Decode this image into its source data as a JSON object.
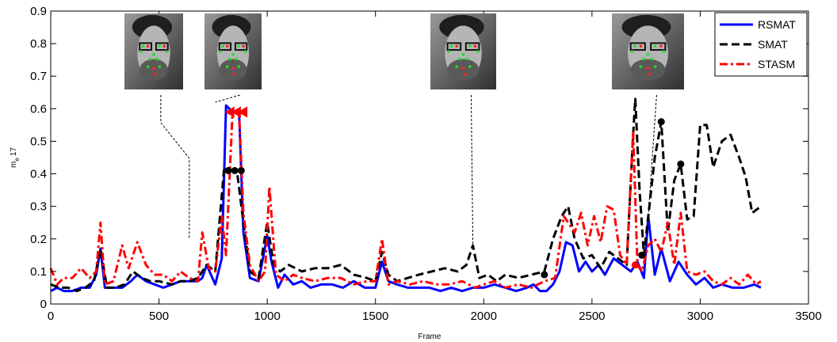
{
  "chart_data": {
    "type": "line",
    "title": "",
    "xlabel": "Frame",
    "ylabel": "m_e 17",
    "ylabel_main": "m",
    "ylabel_sub": "e",
    "ylabel_suffix": "17",
    "xlim": [
      0,
      3500
    ],
    "ylim": [
      0,
      0.9
    ],
    "x_ticks": [
      0,
      500,
      1000,
      1500,
      2000,
      2500,
      3000,
      3500
    ],
    "y_ticks": [
      0,
      0.1,
      0.2,
      0.3,
      0.4,
      0.5,
      0.6,
      0.7,
      0.8,
      0.9
    ],
    "x_tick_labels": [
      "0",
      "500",
      "1000",
      "1500",
      "2000",
      "2500",
      "3000",
      "3500"
    ],
    "y_tick_labels": [
      "0",
      "0.1",
      "0.2",
      "0.3",
      "0.4",
      "0.5",
      "0.6",
      "0.7",
      "0.8",
      "0.9"
    ],
    "grid": false,
    "legend_position": "top-right",
    "series": [
      {
        "name": "RSMAT",
        "color": "#0000ff",
        "style": "solid",
        "x": [
          0,
          30,
          60,
          100,
          140,
          180,
          210,
          230,
          250,
          290,
          330,
          370,
          400,
          440,
          480,
          520,
          560,
          600,
          640,
          680,
          700,
          720,
          760,
          790,
          810,
          840,
          870,
          890,
          920,
          960,
          1000,
          1020,
          1050,
          1080,
          1120,
          1160,
          1200,
          1250,
          1300,
          1350,
          1400,
          1450,
          1500,
          1530,
          1560,
          1600,
          1650,
          1700,
          1750,
          1800,
          1850,
          1900,
          1950,
          2000,
          2050,
          2100,
          2150,
          2200,
          2230,
          2260,
          2290,
          2320,
          2350,
          2380,
          2410,
          2440,
          2470,
          2500,
          2530,
          2560,
          2600,
          2640,
          2680,
          2710,
          2740,
          2760,
          2790,
          2820,
          2860,
          2900,
          2940,
          2980,
          3020,
          3060,
          3100,
          3150,
          3200,
          3250,
          3280
        ],
        "y": [
          0.04,
          0.05,
          0.04,
          0.04,
          0.05,
          0.05,
          0.09,
          0.17,
          0.05,
          0.05,
          0.05,
          0.07,
          0.09,
          0.07,
          0.06,
          0.05,
          0.06,
          0.07,
          0.07,
          0.07,
          0.08,
          0.12,
          0.06,
          0.14,
          0.61,
          0.59,
          0.59,
          0.22,
          0.08,
          0.07,
          0.21,
          0.13,
          0.05,
          0.09,
          0.06,
          0.07,
          0.05,
          0.06,
          0.06,
          0.05,
          0.07,
          0.05,
          0.05,
          0.13,
          0.07,
          0.06,
          0.05,
          0.05,
          0.05,
          0.04,
          0.05,
          0.04,
          0.05,
          0.05,
          0.06,
          0.05,
          0.04,
          0.05,
          0.06,
          0.04,
          0.04,
          0.06,
          0.1,
          0.19,
          0.18,
          0.1,
          0.13,
          0.1,
          0.12,
          0.09,
          0.14,
          0.12,
          0.1,
          0.13,
          0.08,
          0.27,
          0.09,
          0.17,
          0.07,
          0.13,
          0.09,
          0.06,
          0.08,
          0.05,
          0.06,
          0.05,
          0.05,
          0.06,
          0.05
        ]
      },
      {
        "name": "SMAT",
        "color": "#000000",
        "style": "dashed",
        "x": [
          0,
          40,
          80,
          120,
          160,
          200,
          230,
          260,
          300,
          340,
          380,
          420,
          460,
          500,
          560,
          600,
          640,
          680,
          720,
          760,
          800,
          830,
          860,
          890,
          920,
          960,
          1000,
          1030,
          1060,
          1100,
          1160,
          1220,
          1280,
          1340,
          1400,
          1460,
          1500,
          1530,
          1560,
          1600,
          1650,
          1700,
          1760,
          1820,
          1880,
          1920,
          1950,
          1980,
          2020,
          2060,
          2100,
          2160,
          2220,
          2280,
          2320,
          2360,
          2390,
          2420,
          2460,
          2500,
          2540,
          2580,
          2620,
          2660,
          2690,
          2700,
          2720,
          2740,
          2760,
          2790,
          2820,
          2850,
          2880,
          2910,
          2940,
          2970,
          3000,
          3030,
          3060,
          3100,
          3140,
          3180,
          3210,
          3240,
          3280
        ],
        "y": [
          0.06,
          0.05,
          0.05,
          0.04,
          0.05,
          0.07,
          0.17,
          0.05,
          0.05,
          0.06,
          0.1,
          0.08,
          0.07,
          0.07,
          0.06,
          0.07,
          0.07,
          0.08,
          0.12,
          0.1,
          0.41,
          0.41,
          0.41,
          0.25,
          0.1,
          0.08,
          0.25,
          0.12,
          0.1,
          0.12,
          0.1,
          0.11,
          0.11,
          0.12,
          0.09,
          0.08,
          0.07,
          0.16,
          0.09,
          0.07,
          0.08,
          0.09,
          0.1,
          0.11,
          0.1,
          0.12,
          0.18,
          0.08,
          0.09,
          0.07,
          0.09,
          0.08,
          0.09,
          0.1,
          0.2,
          0.27,
          0.3,
          0.2,
          0.14,
          0.15,
          0.11,
          0.16,
          0.14,
          0.12,
          0.52,
          0.63,
          0.35,
          0.15,
          0.27,
          0.45,
          0.56,
          0.22,
          0.38,
          0.43,
          0.26,
          0.27,
          0.55,
          0.55,
          0.42,
          0.5,
          0.52,
          0.45,
          0.39,
          0.28,
          0.3
        ]
      },
      {
        "name": "STASM",
        "color": "#ff0000",
        "style": "dashdot",
        "x": [
          0,
          30,
          60,
          100,
          140,
          180,
          210,
          230,
          250,
          290,
          330,
          360,
          400,
          440,
          480,
          520,
          560,
          600,
          640,
          680,
          700,
          730,
          760,
          790,
          810,
          840,
          870,
          890,
          920,
          960,
          990,
          1010,
          1040,
          1080,
          1120,
          1160,
          1220,
          1280,
          1340,
          1400,
          1460,
          1500,
          1530,
          1560,
          1600,
          1660,
          1720,
          1780,
          1840,
          1900,
          1960,
          2000,
          2050,
          2100,
          2160,
          2220,
          2280,
          2330,
          2370,
          2390,
          2420,
          2450,
          2480,
          2510,
          2540,
          2570,
          2600,
          2630,
          2660,
          2690,
          2710,
          2730,
          2760,
          2790,
          2820,
          2850,
          2880,
          2910,
          2940,
          2980,
          3020,
          3060,
          3100,
          3140,
          3180,
          3220,
          3260,
          3280
        ],
        "y": [
          0.11,
          0.06,
          0.08,
          0.08,
          0.11,
          0.08,
          0.1,
          0.25,
          0.06,
          0.07,
          0.18,
          0.11,
          0.19,
          0.12,
          0.09,
          0.09,
          0.07,
          0.1,
          0.08,
          0.07,
          0.22,
          0.11,
          0.1,
          0.27,
          0.15,
          0.59,
          0.59,
          0.28,
          0.12,
          0.07,
          0.1,
          0.36,
          0.09,
          0.07,
          0.09,
          0.08,
          0.07,
          0.08,
          0.08,
          0.06,
          0.07,
          0.07,
          0.2,
          0.06,
          0.07,
          0.06,
          0.07,
          0.06,
          0.06,
          0.07,
          0.05,
          0.06,
          0.07,
          0.05,
          0.06,
          0.05,
          0.07,
          0.08,
          0.27,
          0.25,
          0.22,
          0.28,
          0.18,
          0.27,
          0.19,
          0.3,
          0.29,
          0.15,
          0.12,
          0.53,
          0.12,
          0.1,
          0.18,
          0.2,
          0.16,
          0.25,
          0.12,
          0.28,
          0.1,
          0.09,
          0.1,
          0.07,
          0.06,
          0.08,
          0.06,
          0.09,
          0.06,
          0.07
        ]
      }
    ],
    "markers": [
      {
        "series": "SMAT",
        "x": 820,
        "y": 0.41,
        "shape": "circle"
      },
      {
        "series": "SMAT",
        "x": 850,
        "y": 0.41,
        "shape": "circle"
      },
      {
        "series": "SMAT",
        "x": 880,
        "y": 0.41,
        "shape": "circle"
      },
      {
        "series": "SMAT",
        "x": 2280,
        "y": 0.09,
        "shape": "circle"
      },
      {
        "series": "SMAT",
        "x": 2820,
        "y": 0.56,
        "shape": "circle"
      },
      {
        "series": "SMAT",
        "x": 2910,
        "y": 0.43,
        "shape": "circle"
      },
      {
        "series": "SMAT",
        "x": 2730,
        "y": 0.15,
        "shape": "circle"
      },
      {
        "series": "STASM",
        "x": 830,
        "y": 0.59,
        "shape": "triangle-left"
      },
      {
        "series": "STASM",
        "x": 860,
        "y": 0.59,
        "shape": "triangle-left"
      },
      {
        "series": "STASM",
        "x": 890,
        "y": 0.59,
        "shape": "triangle-left"
      },
      {
        "series": "STASM",
        "x": 2700,
        "y": 0.12,
        "shape": "circle"
      }
    ],
    "face_callouts": [
      {
        "frame": 640,
        "y": 0.2
      },
      {
        "frame": 760,
        "y": 0.62
      },
      {
        "frame": 1950,
        "y": 0.17
      },
      {
        "frame": 2760,
        "y": 0.27
      }
    ]
  }
}
